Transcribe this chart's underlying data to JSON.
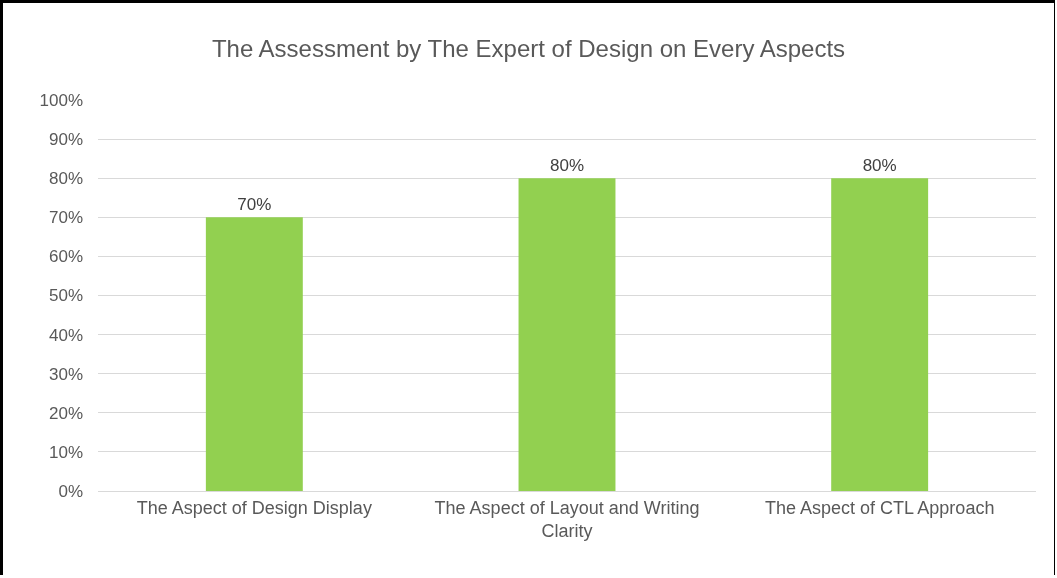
{
  "chart_data": {
    "type": "bar",
    "title": "The Assessment by The Expert of Design on Every Aspects",
    "categories": [
      "The Aspect of Design Display",
      "The Aspect of Layout and Writing Clarity",
      "The Aspect of CTL Approach"
    ],
    "values": [
      70,
      80,
      80
    ],
    "color": "#92d050",
    "value_labels": [
      "70%",
      "80%",
      "80%"
    ],
    "ylim": [
      0,
      100
    ],
    "yticks": [
      {
        "value": 0,
        "label": "0%"
      },
      {
        "value": 10,
        "label": "10%"
      },
      {
        "value": 20,
        "label": "20%"
      },
      {
        "value": 30,
        "label": "30%"
      },
      {
        "value": 40,
        "label": "40%"
      },
      {
        "value": 50,
        "label": "50%"
      },
      {
        "value": 60,
        "label": "60%"
      },
      {
        "value": 70,
        "label": "70%"
      },
      {
        "value": 80,
        "label": "80%"
      },
      {
        "value": 90,
        "label": "90%"
      },
      {
        "value": 100,
        "label": "100%"
      }
    ],
    "grid": "y"
  }
}
